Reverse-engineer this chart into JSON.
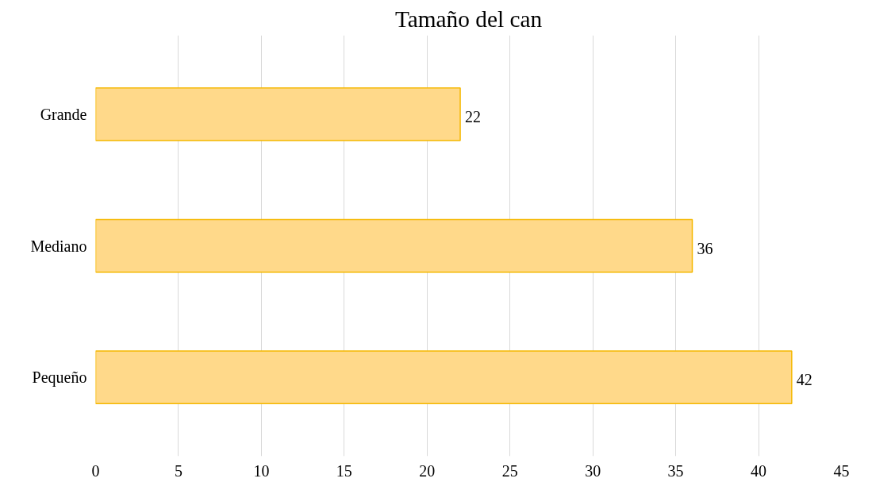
{
  "chart_data": {
    "type": "bar",
    "orientation": "horizontal",
    "title": "Tamaño del can",
    "categories": [
      "Grande",
      "Mediano",
      "Pequeño"
    ],
    "values": [
      22,
      36,
      42
    ],
    "color": "#ffd98a",
    "xlim": [
      0,
      45
    ],
    "xticks": [
      0,
      5,
      10,
      15,
      20,
      25,
      30,
      35,
      40,
      45
    ],
    "grid": "x",
    "data_labels": true
  }
}
